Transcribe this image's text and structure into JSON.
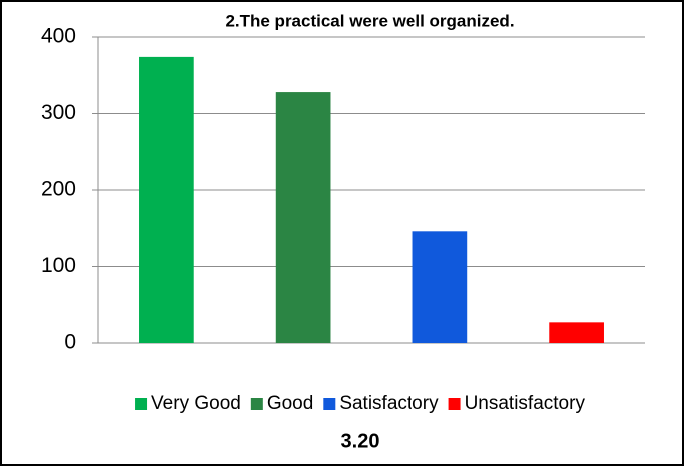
{
  "chart_data": {
    "type": "bar",
    "title": "2.The practical were well organized.",
    "caption": "3.20",
    "categories": [
      "Very Good",
      "Good",
      "Satisfactory",
      "Unsatisfactory"
    ],
    "values": [
      374,
      328,
      146,
      27
    ],
    "colors": [
      "#00b050",
      "#2b8544",
      "#1059dc",
      "#ff0000"
    ],
    "ylim": [
      0,
      400
    ],
    "yticks": [
      0,
      100,
      200,
      300,
      400
    ],
    "grid": true,
    "legend": "bottom"
  }
}
